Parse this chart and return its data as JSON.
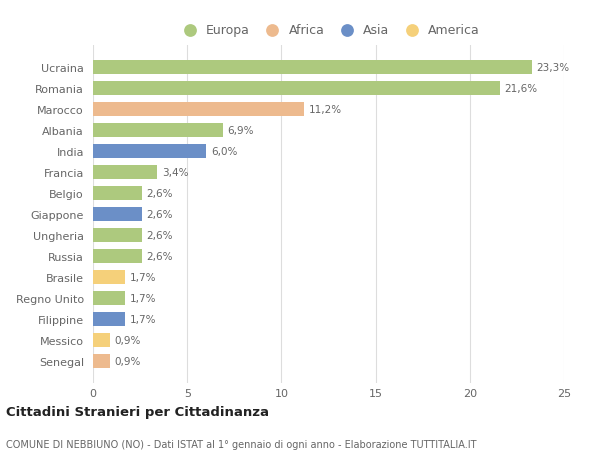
{
  "categories": [
    "Senegal",
    "Messico",
    "Filippine",
    "Regno Unito",
    "Brasile",
    "Russia",
    "Ungheria",
    "Giappone",
    "Belgio",
    "Francia",
    "India",
    "Albania",
    "Marocco",
    "Romania",
    "Ucraina"
  ],
  "values": [
    0.9,
    0.9,
    1.7,
    1.7,
    1.7,
    2.6,
    2.6,
    2.6,
    2.6,
    3.4,
    6.0,
    6.9,
    11.2,
    21.6,
    23.3
  ],
  "continents": [
    "Africa",
    "America",
    "Asia",
    "Europa",
    "America",
    "Europa",
    "Europa",
    "Asia",
    "Europa",
    "Europa",
    "Asia",
    "Europa",
    "Africa",
    "Europa",
    "Europa"
  ],
  "colors": {
    "Europa": "#adc97e",
    "Africa": "#edba8e",
    "Asia": "#6b8fc7",
    "America": "#f5d07a"
  },
  "labels": [
    "0,9%",
    "0,9%",
    "1,7%",
    "1,7%",
    "1,7%",
    "2,6%",
    "2,6%",
    "2,6%",
    "2,6%",
    "3,4%",
    "6,0%",
    "6,9%",
    "11,2%",
    "21,6%",
    "23,3%"
  ],
  "title": "Cittadini Stranieri per Cittadinanza",
  "subtitle": "COMUNE DI NEBBIUNO (NO) - Dati ISTAT al 1° gennaio di ogni anno - Elaborazione TUTTITALIA.IT",
  "legend_labels": [
    "Europa",
    "Africa",
    "Asia",
    "America"
  ],
  "xlim": [
    0,
    25
  ],
  "xticks": [
    0,
    5,
    10,
    15,
    20,
    25
  ],
  "background_color": "#ffffff",
  "grid_color": "#dddddd",
  "bar_height": 0.65,
  "text_color": "#666666",
  "title_color": "#222222"
}
